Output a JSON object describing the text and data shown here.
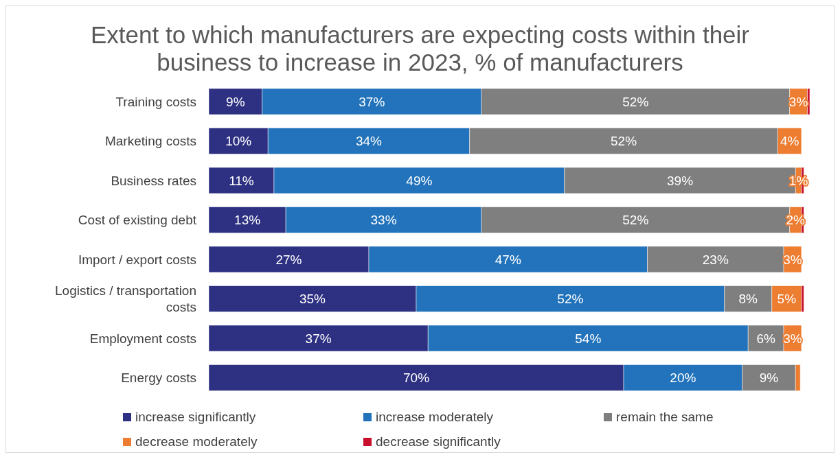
{
  "chart_data": {
    "type": "bar",
    "title": "Extent to which manufacturers are expecting costs within their business to increase in 2023, % of manufacturers",
    "orientation": "horizontal",
    "stacked": true,
    "tick_labels": "y",
    "legend": "bottom",
    "categories": [
      "Training costs",
      "Marketing costs",
      "Business rates",
      "Cost of existing debt",
      "Import / export costs",
      "Logistics / transportation costs",
      "Employment costs",
      "Energy costs"
    ],
    "series": [
      {
        "name": "increase significantly",
        "color": "#2e3182",
        "values": [
          9,
          10,
          11,
          13,
          27,
          35,
          37,
          70
        ],
        "value_labels": [
          "9%",
          "10%",
          "11%",
          "13%",
          "27%",
          "35%",
          "37%",
          "70%"
        ]
      },
      {
        "name": "increase moderately",
        "color": "#2273bb",
        "values": [
          37,
          34,
          49,
          33,
          47,
          52,
          54,
          20
        ],
        "value_labels": [
          "37%",
          "34%",
          "49%",
          "33%",
          "47%",
          "52%",
          "54%",
          "20%"
        ]
      },
      {
        "name": "remain the same",
        "color": "#7f7f7f",
        "values": [
          52,
          52,
          39,
          52,
          23,
          8,
          6,
          9
        ],
        "value_labels": [
          "52%",
          "52%",
          "39%",
          "52%",
          "23%",
          "8%",
          "6%",
          "9%"
        ]
      },
      {
        "name": "decrease moderately",
        "color": "#ed7d31",
        "values": [
          3,
          4,
          1,
          2,
          3,
          5,
          3,
          0.8
        ],
        "value_labels": [
          "3%",
          "4%",
          "1%",
          "2%",
          "3%",
          "5%",
          "3%",
          null
        ]
      },
      {
        "name": "decrease significantly",
        "color": "#c8102e",
        "values": [
          0.4,
          null,
          0.4,
          0.4,
          null,
          0.4,
          null,
          null
        ],
        "value_labels": [
          null,
          null,
          null,
          null,
          null,
          null,
          null,
          null
        ]
      }
    ]
  }
}
